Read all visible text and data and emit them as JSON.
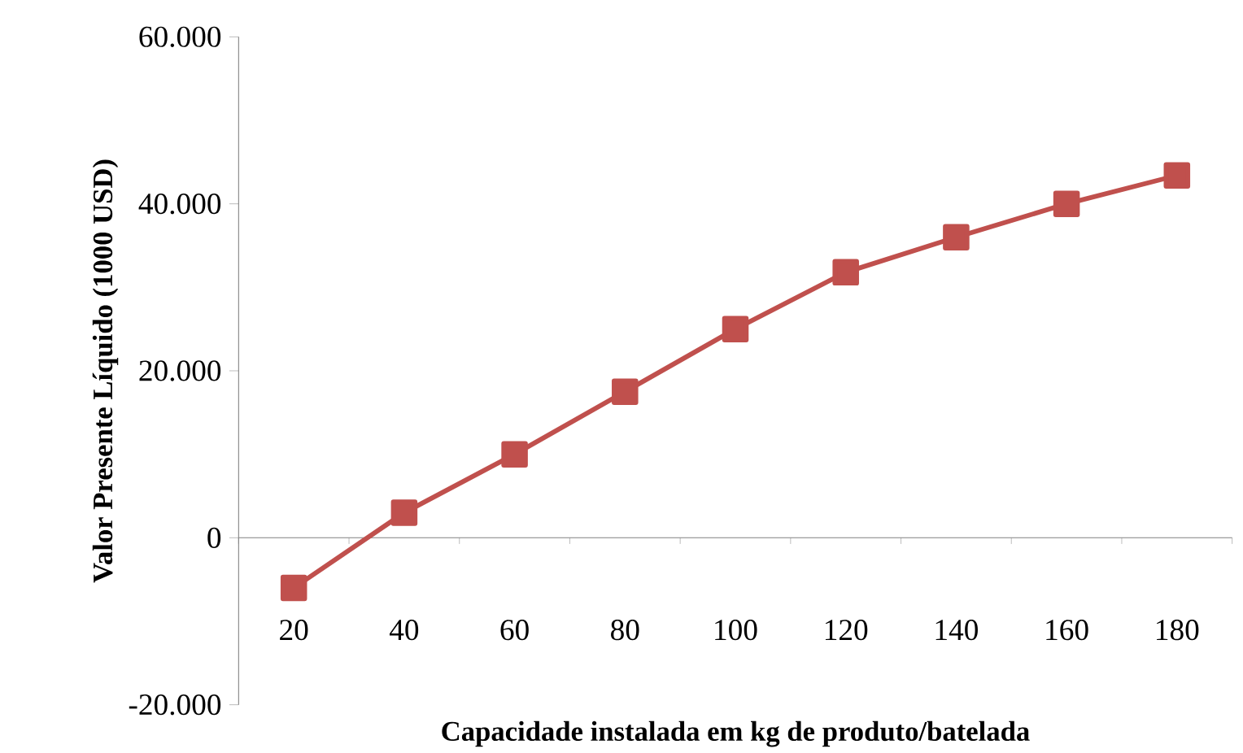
{
  "chart_data": {
    "type": "line",
    "xlabel": "Capacidade instalada em kg de produto/batelada",
    "ylabel": "Valor Presente Líquido (1000 USD)",
    "categories": [
      "20",
      "40",
      "60",
      "80",
      "100",
      "120",
      "140",
      "160",
      "180"
    ],
    "values": [
      -6000,
      3000,
      10000,
      17500,
      25000,
      31800,
      36000,
      40000,
      43400
    ],
    "color": "#c0504d",
    "marker": "square",
    "line_style": "solid",
    "ylim": [
      -20000,
      60000
    ],
    "yticks": [
      {
        "value": -20000,
        "label": "-20.000"
      },
      0,
      {
        "value": 20000,
        "label": "20.000"
      },
      {
        "value": 40000,
        "label": "40.000"
      },
      {
        "value": 60000,
        "label": "60.000"
      }
    ]
  }
}
